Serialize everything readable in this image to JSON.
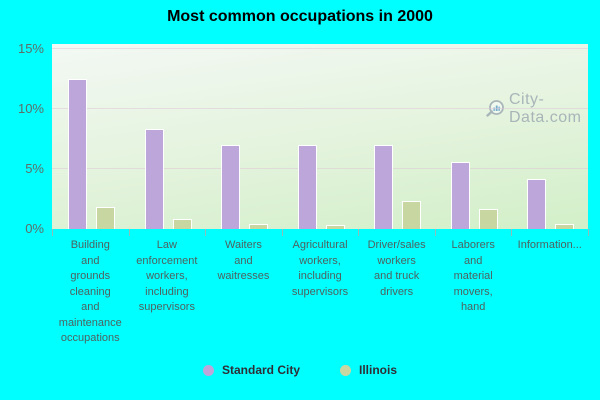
{
  "title": "Most common occupations in 2000",
  "watermark": {
    "text": "City-Data.com",
    "logo": "magnifier-chart-logo"
  },
  "colors": {
    "background": "#00ffff",
    "standard_city_bar": "#bca6da",
    "illinois_bar": "#c8d6a2",
    "plot_gradient_top": "#f3f8f4",
    "plot_gradient_bottom": "#d2efc8",
    "gridline": "#e0c8d8",
    "axis_text": "#5d6e69",
    "title_text": "#000000",
    "watermark_text": "#9aa6b0"
  },
  "chart_data": {
    "type": "bar",
    "title": "Most common occupations in 2000",
    "categories": [
      "Building and grounds cleaning and maintenance occupations",
      "Law enforcement workers, including supervisors",
      "Waiters and waitresses",
      "Agricultural workers, including supervisors",
      "Driver/sales workers and truck drivers",
      "Laborers and material movers, hand",
      "Information..."
    ],
    "categories_display": [
      "Building\nand\ngrounds\ncleaning\nand\nmaintenance\noccupations",
      "Law\nenforcement\nworkers,\nincluding\nsupervisors",
      "Waiters\nand\nwaitresses",
      "Agricultural\nworkers,\nincluding\nsupervisors",
      "Driver/sales\nworkers\nand truck\ndrivers",
      "Laborers\nand\nmaterial\nmovers,\nhand",
      "Information..."
    ],
    "series": [
      {
        "name": "Standard City",
        "color": "#bca6da",
        "values": [
          12.5,
          8.3,
          7.0,
          7.0,
          7.0,
          5.6,
          4.2
        ]
      },
      {
        "name": "Illinois",
        "color": "#c8d6a2",
        "values": [
          1.8,
          0.8,
          0.4,
          0.3,
          2.3,
          1.7,
          0.4
        ]
      }
    ],
    "xlabel": "",
    "ylabel": "",
    "ylim": [
      0,
      15
    ],
    "yticks": [
      {
        "label": "0%",
        "value": 0
      },
      {
        "label": "5%",
        "value": 5
      },
      {
        "label": "10%",
        "value": 10
      },
      {
        "label": "15%",
        "value": 15
      }
    ],
    "grid": true,
    "legend_position": "bottom"
  },
  "legend": {
    "items": [
      {
        "label": "Standard City",
        "color": "#bca6da"
      },
      {
        "label": "Illinois",
        "color": "#c8d6a2"
      }
    ]
  }
}
